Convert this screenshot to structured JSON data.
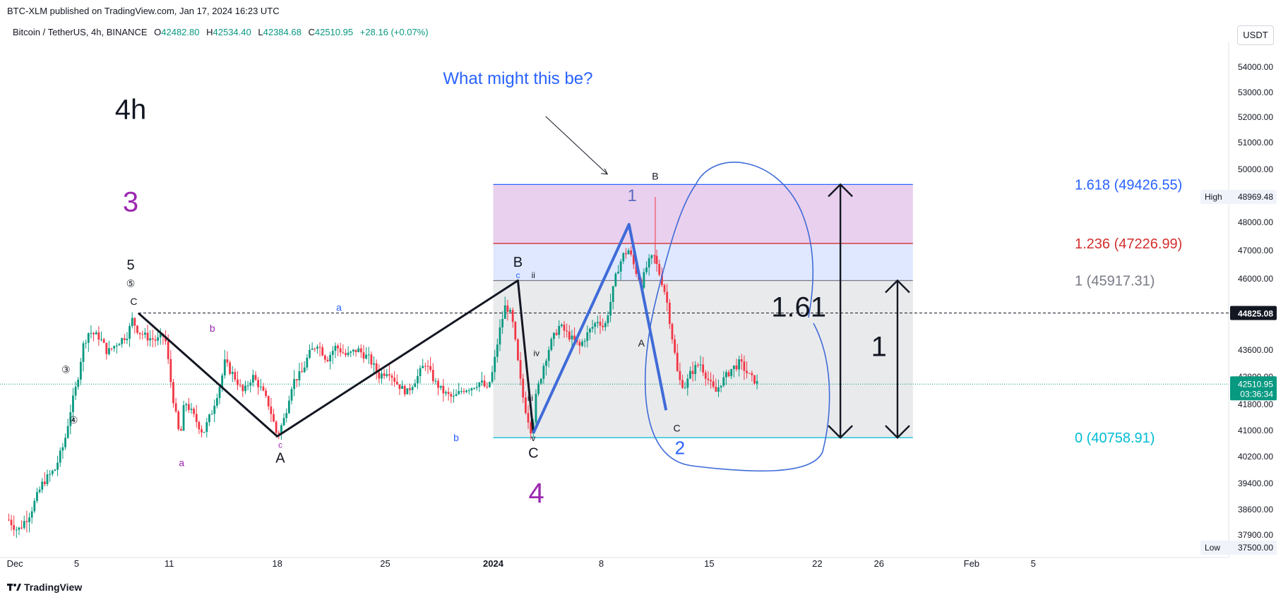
{
  "header": {
    "publish_line": "BTC-XLM published on TradingView.com, Jan 17, 2024 16:23 UTC",
    "symbol": "Bitcoin / TetherUS, 4h, BINANCE",
    "o_label": "O",
    "o_value": "42482.80",
    "h_label": "H",
    "h_value": "42534.40",
    "l_label": "L",
    "l_value": "42384.68",
    "c_label": "C",
    "c_value": "42510.95",
    "change": "+28.16 (+0.07%)",
    "currency": "USDT"
  },
  "footer": {
    "brand": "TradingView"
  },
  "colors": {
    "up": "#089981",
    "down": "#f23645",
    "black": "#131722",
    "blue": "#2962ff",
    "purple": "#9c27b0",
    "red": "#d32f2f",
    "cyan": "#00bcd4"
  },
  "chart_data": {
    "type": "candlestick",
    "timeframe": "4h",
    "y_ticks": [
      37500,
      37900,
      38600,
      39400,
      40200,
      41000,
      41800,
      42800,
      43600,
      46000,
      47000,
      48000,
      49000,
      50000,
      51000,
      52000,
      53000,
      54000
    ],
    "y_tick_labels": [
      "37500.00",
      "37900.00",
      "38600.00",
      "39400.00",
      "40200.00",
      "41000.00",
      "41800.00",
      "42800.00",
      "43600.00",
      "46000.00",
      "47000.00",
      "48000.00",
      "49000.00",
      "50000.00",
      "51000.00",
      "52000.00",
      "53000.00",
      "54000.00"
    ],
    "x_ticks": [
      {
        "day": 1,
        "label": "Dec"
      },
      {
        "day": 5,
        "label": "5"
      },
      {
        "day": 11,
        "label": "11"
      },
      {
        "day": 18,
        "label": "18"
      },
      {
        "day": 25,
        "label": "25"
      },
      {
        "day": 32,
        "label": "2024"
      },
      {
        "day": 39,
        "label": "8"
      },
      {
        "day": 46,
        "label": "15"
      },
      {
        "day": 53,
        "label": "22"
      },
      {
        "day": 57,
        "label": "26"
      },
      {
        "day": 63,
        "label": "Feb"
      },
      {
        "day": 67,
        "label": "5"
      }
    ],
    "price_labels": [
      {
        "price": 48969.48,
        "text": "48969.48",
        "tag": "High"
      },
      {
        "price": 44825.08,
        "text": "44825.08",
        "tag": ""
      },
      {
        "price": 42510.95,
        "text": "42510.95",
        "sub": "03:36:34",
        "tag": ""
      },
      {
        "price": 37500,
        "text": "37500.00",
        "tag": "Low"
      }
    ],
    "price_path": [
      [
        0.6,
        38300
      ],
      [
        1.2,
        38000
      ],
      [
        2,
        38500
      ],
      [
        2.8,
        39400
      ],
      [
        3.6,
        39800
      ],
      [
        4.2,
        40600
      ],
      [
        4.6,
        41600
      ],
      [
        5,
        42500
      ],
      [
        5.4,
        43700
      ],
      [
        5.8,
        44200
      ],
      [
        6.5,
        44000
      ],
      [
        7,
        43500
      ],
      [
        7.6,
        43800
      ],
      [
        8.3,
        44100
      ],
      [
        8.6,
        44600
      ],
      [
        9,
        44200
      ],
      [
        9.6,
        44000
      ],
      [
        10.2,
        43900
      ],
      [
        10.7,
        44100
      ],
      [
        11,
        43000
      ],
      [
        11.3,
        41800
      ],
      [
        11.7,
        40700
      ],
      [
        12,
        41900
      ],
      [
        12.6,
        41400
      ],
      [
        13.2,
        40900
      ],
      [
        13.8,
        41600
      ],
      [
        14.2,
        42300
      ],
      [
        14.6,
        43200
      ],
      [
        15.2,
        42800
      ],
      [
        15.8,
        42200
      ],
      [
        16.4,
        42800
      ],
      [
        17,
        42300
      ],
      [
        17.5,
        41700
      ],
      [
        18,
        40800
      ],
      [
        18.5,
        41400
      ],
      [
        19,
        42600
      ],
      [
        19.6,
        42900
      ],
      [
        20,
        43400
      ],
      [
        20.6,
        43800
      ],
      [
        21.2,
        43300
      ],
      [
        21.8,
        43700
      ],
      [
        22.5,
        43400
      ],
      [
        23.2,
        43600
      ],
      [
        24,
        43300
      ],
      [
        24.6,
        42800
      ],
      [
        25.2,
        43000
      ],
      [
        25.8,
        42500
      ],
      [
        26.4,
        42200
      ],
      [
        27,
        42700
      ],
      [
        27.6,
        43200
      ],
      [
        28.2,
        42600
      ],
      [
        28.8,
        42200
      ],
      [
        29.4,
        42000
      ],
      [
        30,
        42300
      ],
      [
        30.6,
        42400
      ],
      [
        31.2,
        42600
      ],
      [
        31.6,
        42300
      ],
      [
        32,
        43000
      ],
      [
        32.4,
        44200
      ],
      [
        32.8,
        45100
      ],
      [
        33.2,
        44700
      ],
      [
        33.6,
        43200
      ],
      [
        34,
        41800
      ],
      [
        34.5,
        40900
      ],
      [
        34.8,
        42200
      ],
      [
        35.3,
        43200
      ],
      [
        35.8,
        43900
      ],
      [
        36.3,
        44400
      ],
      [
        37,
        44000
      ],
      [
        37.6,
        43700
      ],
      [
        38.2,
        44200
      ],
      [
        38.8,
        44600
      ],
      [
        39.2,
        44300
      ],
      [
        39.6,
        45200
      ],
      [
        40,
        46200
      ],
      [
        40.4,
        46800
      ],
      [
        40.8,
        47000
      ],
      [
        41.2,
        46300
      ],
      [
        41.6,
        45800
      ],
      [
        42,
        46500
      ],
      [
        42.4,
        46800
      ],
      [
        42.8,
        46100
      ],
      [
        43.2,
        45400
      ],
      [
        43.6,
        44000
      ],
      [
        44,
        42700
      ],
      [
        44.4,
        42400
      ],
      [
        44.8,
        42900
      ],
      [
        45.4,
        43200
      ],
      [
        46,
        42600
      ],
      [
        46.4,
        42200
      ],
      [
        46.8,
        42600
      ],
      [
        47.4,
        43000
      ],
      [
        48,
        43200
      ],
      [
        48.6,
        42800
      ],
      [
        49.2,
        42500
      ]
    ],
    "fib_levels": [
      {
        "ratio": "1.618",
        "price": 49426.55,
        "label": "1.618 (49426.55)",
        "color": "#2962ff"
      },
      {
        "ratio": "1.236",
        "price": 47226.99,
        "label": "1.236 (47226.99)",
        "color": "#d32f2f"
      },
      {
        "ratio": "1",
        "price": 45917.31,
        "label": "1 (45917.31)",
        "color": "#787b86"
      },
      {
        "ratio": "0",
        "price": 40758.91,
        "label": "0 (40758.91)",
        "color": "#00bcd4"
      }
    ],
    "fib_zone_days": [
      32,
      59.2
    ],
    "dashed_level": 44825.08,
    "last_price_level": 42510.95,
    "black_waves": [
      [
        9,
        44820
      ],
      [
        18,
        40800
      ],
      [
        33.6,
        45917
      ],
      [
        34.6,
        40900
      ]
    ],
    "blue_wave": [
      [
        34.6,
        40900
      ],
      [
        40.8,
        47900
      ],
      [
        43.2,
        41600
      ]
    ],
    "annotations": [
      {
        "text": "4h",
        "day": 8.5,
        "price": 51900,
        "color": "#131722",
        "size": 40
      },
      {
        "text": "3",
        "day": 8.5,
        "price": 48400,
        "color": "#9c27b0",
        "size": 40
      },
      {
        "text": "5",
        "day": 8.5,
        "price": 46300,
        "color": "#131722",
        "size": 20
      },
      {
        "text": "⑤",
        "day": 8.5,
        "price": 45700,
        "color": "#131722",
        "size": 14
      },
      {
        "text": "C",
        "day": 8.7,
        "price": 45100,
        "color": "#131722",
        "size": 14
      },
      {
        "text": "③",
        "day": 4.3,
        "price": 42900,
        "color": "#131722",
        "size": 14
      },
      {
        "text": "④",
        "day": 4.8,
        "price": 41200,
        "color": "#131722",
        "size": 14
      },
      {
        "text": "b",
        "day": 13.8,
        "price": 44200,
        "color": "#9c27b0",
        "size": 14
      },
      {
        "text": "a",
        "day": 22,
        "price": 44900,
        "color": "#2962ff",
        "size": 14
      },
      {
        "text": "a",
        "day": 11.8,
        "price": 39900,
        "color": "#9c27b0",
        "size": 14
      },
      {
        "text": "c",
        "day": 18.2,
        "price": 40450,
        "color": "#9c27b0",
        "size": 12
      },
      {
        "text": "A",
        "day": 18.2,
        "price": 40000,
        "color": "#131722",
        "size": 20
      },
      {
        "text": "b",
        "day": 29.6,
        "price": 40650,
        "color": "#2962ff",
        "size": 14
      },
      {
        "text": "B",
        "day": 33.6,
        "price": 46400,
        "color": "#131722",
        "size": 20
      },
      {
        "text": "c",
        "day": 33.6,
        "price": 46000,
        "color": "#2962ff",
        "size": 12
      },
      {
        "text": "ii",
        "day": 34.6,
        "price": 46000,
        "color": "#131722",
        "size": 12
      },
      {
        "text": "iv",
        "day": 34.8,
        "price": 43400,
        "color": "#131722",
        "size": 12
      },
      {
        "text": "iii",
        "day": 34.4,
        "price": 41900,
        "color": "#131722",
        "size": 12
      },
      {
        "text": "v",
        "day": 34.6,
        "price": 40650,
        "color": "#131722",
        "size": 12
      },
      {
        "text": "C",
        "day": 34.6,
        "price": 40150,
        "color": "#131722",
        "size": 20
      },
      {
        "text": "4",
        "day": 34.8,
        "price": 38800,
        "color": "#9c27b0",
        "size": 40
      },
      {
        "text": "What might this be?",
        "day": 33.6,
        "price": 53300,
        "color": "#2962ff",
        "size": 24
      },
      {
        "text": "1",
        "day": 41,
        "price": 48800,
        "color": "#5c6bc0",
        "size": 24
      },
      {
        "text": "B",
        "day": 42.5,
        "price": 49600,
        "color": "#131722",
        "size": 14
      },
      {
        "text": "A",
        "day": 41.6,
        "price": 43700,
        "color": "#131722",
        "size": 14
      },
      {
        "text": "C",
        "day": 43.9,
        "price": 40950,
        "color": "#131722",
        "size": 14
      },
      {
        "text": "2",
        "day": 44.1,
        "price": 40250,
        "color": "#2962ff",
        "size": 26
      },
      {
        "text": "1.61",
        "day": 51.8,
        "price": 44700,
        "color": "#131722",
        "size": 40
      },
      {
        "text": "1",
        "day": 57,
        "price": 43400,
        "color": "#131722",
        "size": 40
      }
    ]
  }
}
